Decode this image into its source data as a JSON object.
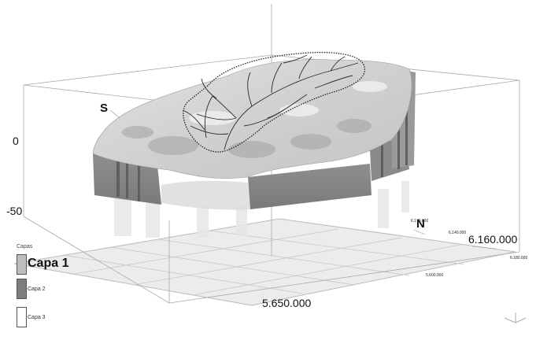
{
  "viewer": {
    "labels": {
      "south": "S",
      "north": "N",
      "elev_zero": "0",
      "elev_neg50": "-50",
      "coord_x_main": "5.650.000",
      "coord_y_main": "6.160.000",
      "tick_170": "6.170.000",
      "tick_140": "6.140.000",
      "tick_180": "6.180.000",
      "tick_600": "5.600.000"
    }
  },
  "legend": {
    "title": "Capas",
    "items": [
      {
        "label": "Capa 1",
        "color": "#bdbdbd"
      },
      {
        "label": "Capa 2",
        "color": "#7d7d7d"
      },
      {
        "label": "Capa 3",
        "color": "#ffffff"
      }
    ]
  }
}
